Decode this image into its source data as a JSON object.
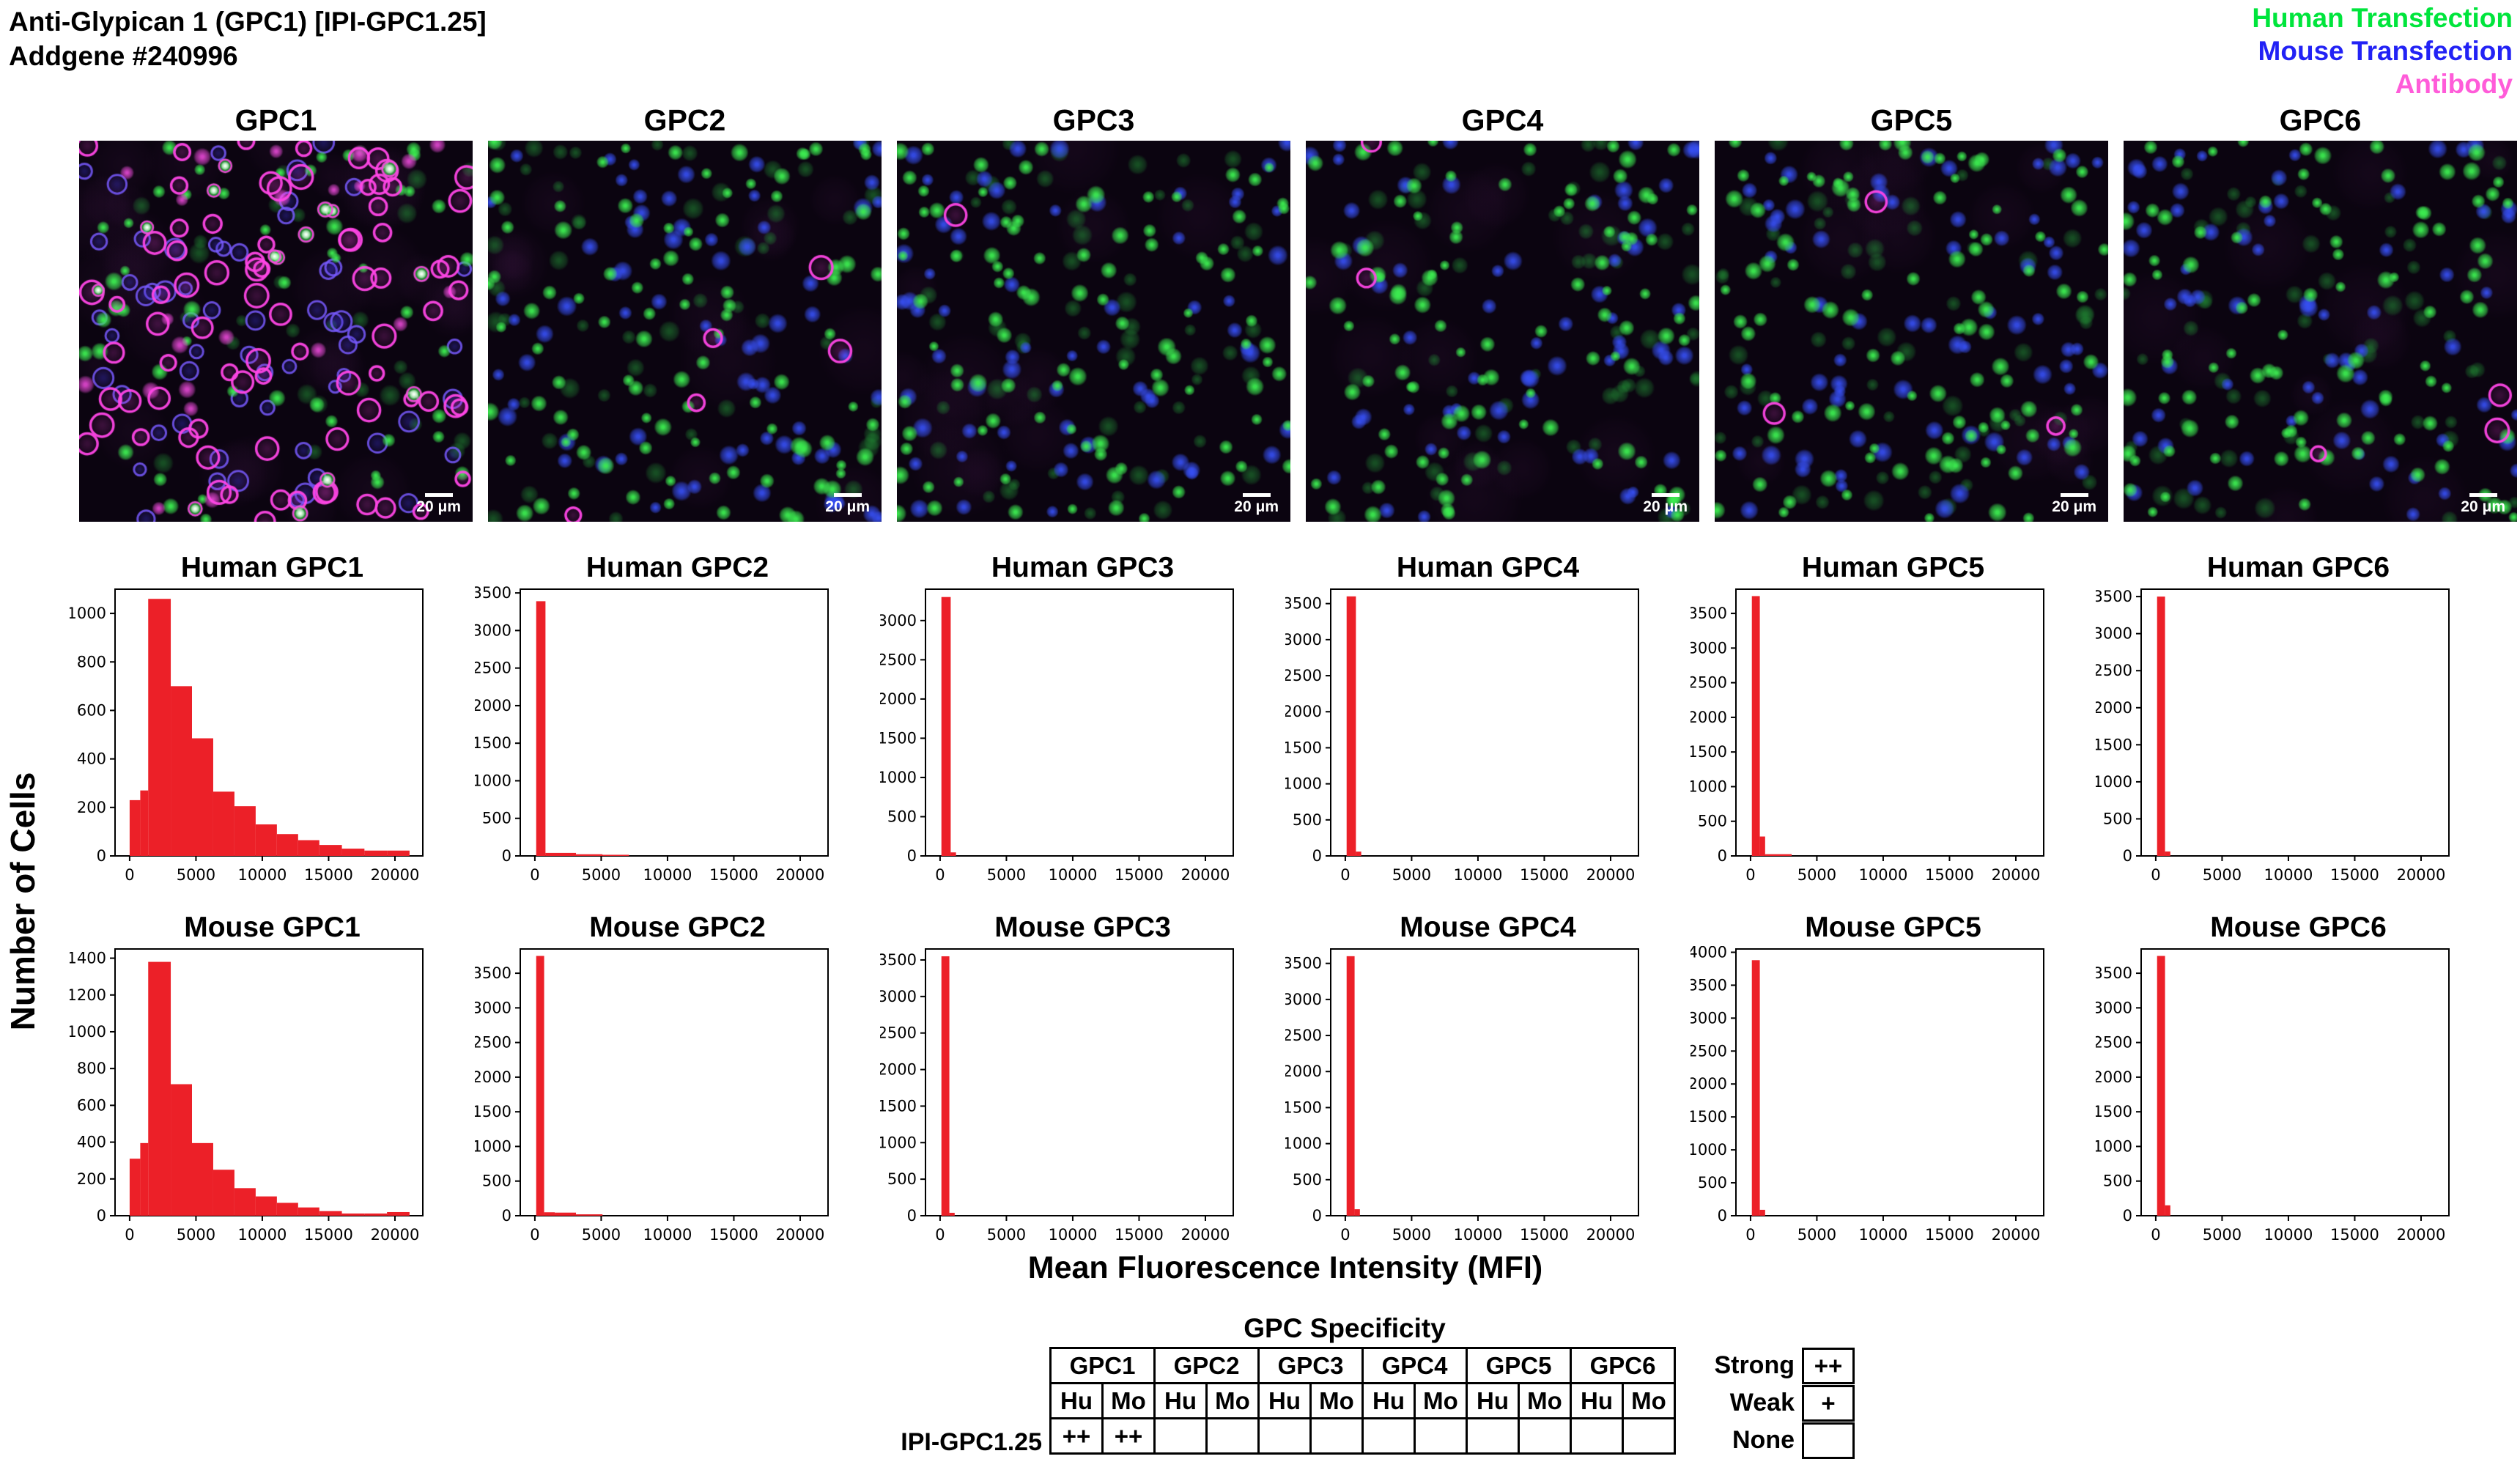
{
  "header": {
    "title_line1": "Anti-Glypican 1 (GPC1) [IPI-GPC1.25]",
    "title_line2": "Addgene #240996"
  },
  "legend": {
    "items": [
      {
        "label": "Human Transfection",
        "color": "#00E53C"
      },
      {
        "label": "Mouse Transfection",
        "color": "#2222F5"
      },
      {
        "label": "Antibody",
        "color": "#FF5CD9"
      }
    ]
  },
  "microscopy": {
    "scale_bar_label": "20 μm",
    "panels": [
      {
        "label": "GPC1",
        "antibody_bound": true,
        "green": 50,
        "blue": 60,
        "magenta_rings": 80,
        "magenta_filled": 22,
        "white": 15,
        "haze": 26
      },
      {
        "label": "GPC2",
        "antibody_bound": false,
        "green": 95,
        "blue": 72,
        "magenta_rings": 5,
        "magenta_filled": 0,
        "white": 0,
        "haze": 12
      },
      {
        "label": "GPC3",
        "antibody_bound": false,
        "green": 100,
        "blue": 65,
        "magenta_rings": 1,
        "magenta_filled": 0,
        "white": 0,
        "haze": 12
      },
      {
        "label": "GPC4",
        "antibody_bound": false,
        "green": 95,
        "blue": 60,
        "magenta_rings": 2,
        "magenta_filled": 0,
        "white": 0,
        "haze": 12
      },
      {
        "label": "GPC5",
        "antibody_bound": false,
        "green": 100,
        "blue": 70,
        "magenta_rings": 3,
        "magenta_filled": 0,
        "white": 0,
        "haze": 12
      },
      {
        "label": "GPC6",
        "antibody_bound": false,
        "green": 95,
        "blue": 68,
        "magenta_rings": 3,
        "magenta_filled": 0,
        "white": 0,
        "haze": 12
      }
    ]
  },
  "axes": {
    "x_label": "Mean Fluorescence Intensity (MFI)",
    "y_label": "Number of Cells"
  },
  "chart_data": {
    "type": "bar",
    "subtype": "histogram-grid",
    "bar_color": "#EC2028",
    "x_label": "Mean Fluorescence Intensity (MFI)",
    "y_label": "Number of Cells",
    "x_ticks": [
      0,
      5000,
      10000,
      15000,
      20000
    ],
    "x_range": [
      -1100,
      22100
    ],
    "grid": false,
    "rows": [
      {
        "row": "Human",
        "plots": [
          {
            "title": "Human GPC1",
            "y_ticks": [
              0,
              200,
              400,
              600,
              800,
              1000
            ],
            "y_max": 1100,
            "bars": [
              [
                0,
                800,
                230
              ],
              [
                800,
                1400,
                270
              ],
              [
                1400,
                3100,
                1060
              ],
              [
                3100,
                4700,
                700
              ],
              [
                4700,
                6300,
                485
              ],
              [
                6300,
                7900,
                265
              ],
              [
                7900,
                9500,
                205
              ],
              [
                9500,
                11100,
                130
              ],
              [
                11100,
                12700,
                90
              ],
              [
                12700,
                14300,
                65
              ],
              [
                14300,
                16000,
                45
              ],
              [
                16000,
                17700,
                30
              ],
              [
                17700,
                19400,
                22
              ],
              [
                19400,
                21100,
                22
              ]
            ]
          },
          {
            "title": "Human GPC2",
            "y_ticks": [
              0,
              500,
              1000,
              1500,
              2000,
              2500,
              3000,
              3500
            ],
            "y_max": 3550,
            "bars": [
              [
                100,
                800,
                3390
              ],
              [
                800,
                3100,
                40
              ],
              [
                3100,
                5100,
                22
              ],
              [
                5100,
                7100,
                15
              ]
            ]
          },
          {
            "title": "Human GPC3",
            "y_ticks": [
              0,
              500,
              1000,
              1500,
              2000,
              2500,
              3000
            ],
            "y_max": 3400,
            "bars": [
              [
                100,
                800,
                3300
              ],
              [
                800,
                1200,
                45
              ]
            ]
          },
          {
            "title": "Human GPC4",
            "y_ticks": [
              0,
              500,
              1000,
              1500,
              2000,
              2500,
              3000,
              3500
            ],
            "y_max": 3700,
            "bars": [
              [
                100,
                800,
                3600
              ],
              [
                800,
                1200,
                60
              ]
            ]
          },
          {
            "title": "Human GPC5",
            "y_ticks": [
              0,
              500,
              1000,
              1500,
              2000,
              2500,
              3000,
              3500
            ],
            "y_max": 3850,
            "bars": [
              [
                100,
                700,
                3750
              ],
              [
                700,
                1100,
                280
              ],
              [
                1100,
                3100,
                25
              ]
            ]
          },
          {
            "title": "Human GPC6",
            "y_ticks": [
              0,
              500,
              1000,
              1500,
              2000,
              2500,
              3000,
              3500
            ],
            "y_max": 3600,
            "bars": [
              [
                100,
                700,
                3500
              ],
              [
                700,
                1100,
                60
              ]
            ]
          }
        ]
      },
      {
        "row": "Mouse",
        "plots": [
          {
            "title": "Mouse GPC1",
            "y_ticks": [
              0,
              200,
              400,
              600,
              800,
              1000,
              1200,
              1400
            ],
            "y_max": 1450,
            "bars": [
              [
                0,
                800,
                310
              ],
              [
                800,
                1400,
                395
              ],
              [
                1400,
                3100,
                1380
              ],
              [
                3100,
                4700,
                715
              ],
              [
                4700,
                6300,
                395
              ],
              [
                6300,
                7900,
                250
              ],
              [
                7900,
                9500,
                150
              ],
              [
                9500,
                11100,
                105
              ],
              [
                11100,
                12700,
                70
              ],
              [
                12700,
                14300,
                45
              ],
              [
                14300,
                16000,
                25
              ],
              [
                16000,
                17700,
                12
              ],
              [
                17700,
                19400,
                12
              ],
              [
                19400,
                21100,
                20
              ]
            ]
          },
          {
            "title": "Mouse GPC2",
            "y_ticks": [
              0,
              500,
              1000,
              1500,
              2000,
              2500,
              3000,
              3500
            ],
            "y_max": 3850,
            "bars": [
              [
                100,
                700,
                3750
              ],
              [
                700,
                1500,
                50
              ],
              [
                1500,
                3100,
                45
              ],
              [
                3100,
                5100,
                20
              ]
            ]
          },
          {
            "title": "Mouse GPC3",
            "y_ticks": [
              0,
              500,
              1000,
              1500,
              2000,
              2500,
              3000,
              3500
            ],
            "y_max": 3650,
            "bars": [
              [
                100,
                700,
                3550
              ],
              [
                700,
                1100,
                40
              ]
            ]
          },
          {
            "title": "Mouse GPC4",
            "y_ticks": [
              0,
              500,
              1000,
              1500,
              2000,
              2500,
              3000,
              3500
            ],
            "y_max": 3700,
            "bars": [
              [
                100,
                700,
                3600
              ],
              [
                700,
                1100,
                90
              ]
            ]
          },
          {
            "title": "Mouse GPC5",
            "y_ticks": [
              0,
              500,
              1000,
              1500,
              2000,
              2500,
              3000,
              3500,
              4000
            ],
            "y_max": 4050,
            "bars": [
              [
                100,
                700,
                3880
              ],
              [
                700,
                1100,
                90
              ]
            ]
          },
          {
            "title": "Mouse GPC6",
            "y_ticks": [
              0,
              500,
              1000,
              1500,
              2000,
              2500,
              3000,
              3500
            ],
            "y_max": 3850,
            "bars": [
              [
                100,
                700,
                3750
              ],
              [
                700,
                1100,
                150
              ]
            ]
          }
        ]
      }
    ]
  },
  "specificity_table": {
    "title": "GPC Specificity",
    "groups": [
      "GPC1",
      "GPC2",
      "GPC3",
      "GPC4",
      "GPC5",
      "GPC6"
    ],
    "subcolumns": [
      "Hu",
      "Mo"
    ],
    "row_label": "IPI-GPC1.25",
    "values": [
      "++",
      "++",
      "",
      "",
      "",
      "",
      "",
      "",
      "",
      "",
      "",
      ""
    ],
    "key": [
      {
        "label": "Strong",
        "symbol": "++"
      },
      {
        "label": "Weak",
        "symbol": "+"
      },
      {
        "label": "None",
        "symbol": ""
      }
    ]
  }
}
